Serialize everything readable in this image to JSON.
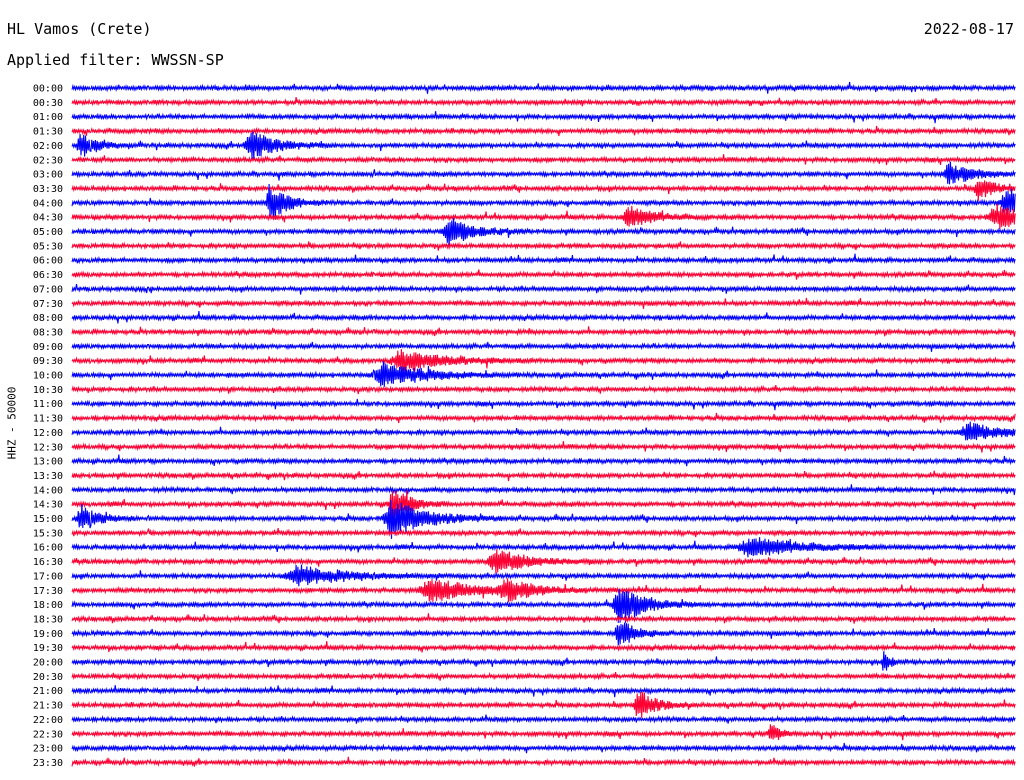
{
  "header": {
    "station": "HL Vamos (Crete)",
    "filter": "Applied filter: WWSSN-SP",
    "date": "2022-08-17"
  },
  "chart_data": {
    "type": "line",
    "title": "HL Vamos (Crete)",
    "subtitle": "Applied filter: WWSSN-SP",
    "date": "2022-08-17",
    "ylabel": "HHZ - 50000",
    "colors": [
      "#0000ff",
      "#ff0033"
    ],
    "row_labels": [
      "00:00",
      "00:30",
      "01:00",
      "01:30",
      "02:00",
      "02:30",
      "03:00",
      "03:30",
      "04:00",
      "04:30",
      "05:00",
      "05:30",
      "06:00",
      "06:30",
      "07:00",
      "07:30",
      "08:00",
      "08:30",
      "09:00",
      "09:30",
      "10:00",
      "10:30",
      "11:00",
      "11:30",
      "12:00",
      "12:30",
      "13:00",
      "13:30",
      "14:00",
      "14:30",
      "15:00",
      "15:30",
      "16:00",
      "16:30",
      "17:00",
      "17:30",
      "18:00",
      "18:30",
      "19:00",
      "19:30",
      "20:00",
      "20:30",
      "21:00",
      "21:30",
      "22:00",
      "22:30",
      "23:00",
      "23:30"
    ],
    "events": [
      {
        "row": 4,
        "pos": 0.01,
        "amp": 1.3,
        "width": 0.02
      },
      {
        "row": 4,
        "pos": 0.19,
        "amp": 1.6,
        "width": 0.03
      },
      {
        "row": 6,
        "pos": 0.93,
        "amp": 1.2,
        "width": 0.03
      },
      {
        "row": 7,
        "pos": 0.96,
        "amp": 1.3,
        "width": 0.02
      },
      {
        "row": 8,
        "pos": 0.21,
        "amp": 2.2,
        "width": 0.02
      },
      {
        "row": 8,
        "pos": 0.99,
        "amp": 1.4,
        "width": 0.03
      },
      {
        "row": 9,
        "pos": 0.59,
        "amp": 1.2,
        "width": 0.03
      },
      {
        "row": 9,
        "pos": 0.98,
        "amp": 1.3,
        "width": 0.04
      },
      {
        "row": 10,
        "pos": 0.4,
        "amp": 1.6,
        "width": 0.03
      },
      {
        "row": 19,
        "pos": 0.35,
        "amp": 1.2,
        "width": 0.05
      },
      {
        "row": 20,
        "pos": 0.33,
        "amp": 1.4,
        "width": 0.05
      },
      {
        "row": 24,
        "pos": 0.95,
        "amp": 1.1,
        "width": 0.04
      },
      {
        "row": 29,
        "pos": 0.34,
        "amp": 2.0,
        "width": 0.02
      },
      {
        "row": 30,
        "pos": 0.01,
        "amp": 1.6,
        "width": 0.02
      },
      {
        "row": 30,
        "pos": 0.34,
        "amp": 2.2,
        "width": 0.04
      },
      {
        "row": 32,
        "pos": 0.72,
        "amp": 1.1,
        "width": 0.06
      },
      {
        "row": 33,
        "pos": 0.45,
        "amp": 1.3,
        "width": 0.04
      },
      {
        "row": 34,
        "pos": 0.24,
        "amp": 1.1,
        "width": 0.06
      },
      {
        "row": 35,
        "pos": 0.38,
        "amp": 1.3,
        "width": 0.05
      },
      {
        "row": 35,
        "pos": 0.46,
        "amp": 1.0,
        "width": 0.04
      },
      {
        "row": 36,
        "pos": 0.58,
        "amp": 2.4,
        "width": 0.03
      },
      {
        "row": 38,
        "pos": 0.58,
        "amp": 1.6,
        "width": 0.02
      },
      {
        "row": 40,
        "pos": 0.86,
        "amp": 1.1,
        "width": 0.01
      },
      {
        "row": 43,
        "pos": 0.6,
        "amp": 1.7,
        "width": 0.02
      },
      {
        "row": 45,
        "pos": 0.74,
        "amp": 1.3,
        "width": 0.01
      }
    ]
  }
}
